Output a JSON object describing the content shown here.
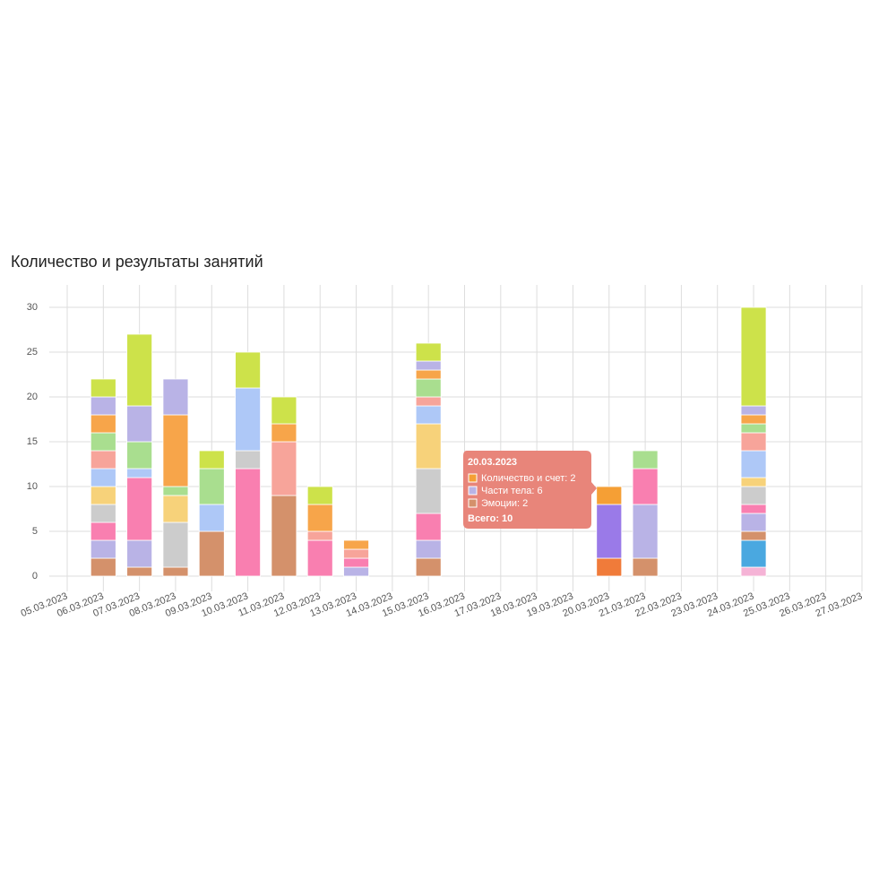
{
  "chart_data": {
    "type": "stacked-bar",
    "title": "Количество и результаты занятий",
    "categories": [
      "05.03.2023",
      "06.03.2023",
      "07.03.2023",
      "08.03.2023",
      "09.03.2023",
      "10.03.2023",
      "11.03.2023",
      "12.03.2023",
      "13.03.2023",
      "14.03.2023",
      "15.03.2023",
      "16.03.2023",
      "17.03.2023",
      "18.03.2023",
      "19.03.2023",
      "20.03.2023",
      "21.03.2023",
      "22.03.2023",
      "23.03.2023",
      "24.03.2023",
      "25.03.2023",
      "26.03.2023",
      "27.03.2023"
    ],
    "stacks": [
      [],
      [
        {
          "color": "#d4916b",
          "value": 2
        },
        {
          "color": "#b9b3e6",
          "value": 2
        },
        {
          "color": "#f97fb0",
          "value": 2
        },
        {
          "color": "#cccccc",
          "value": 2
        },
        {
          "color": "#f7d27a",
          "value": 2
        },
        {
          "color": "#aec8f7",
          "value": 2
        },
        {
          "color": "#f7a49a",
          "value": 2
        },
        {
          "color": "#a9de8f",
          "value": 2
        },
        {
          "color": "#f7a54a",
          "value": 2
        },
        {
          "color": "#b9b3e6",
          "value": 2
        },
        {
          "color": "#cde24a",
          "value": 2
        }
      ],
      [
        {
          "color": "#d4916b",
          "value": 1
        },
        {
          "color": "#b9b3e6",
          "value": 3
        },
        {
          "color": "#f97fb0",
          "value": 7
        },
        {
          "color": "#aec8f7",
          "value": 1
        },
        {
          "color": "#a9de8f",
          "value": 3
        },
        {
          "color": "#b9b3e6",
          "value": 4
        },
        {
          "color": "#cde24a",
          "value": 8
        }
      ],
      [
        {
          "color": "#d4916b",
          "value": 1
        },
        {
          "color": "#cccccc",
          "value": 5
        },
        {
          "color": "#f7d27a",
          "value": 3
        },
        {
          "color": "#a9de8f",
          "value": 1
        },
        {
          "color": "#f7a54a",
          "value": 8
        },
        {
          "color": "#b9b3e6",
          "value": 4
        }
      ],
      [
        {
          "color": "#d4916b",
          "value": 5
        },
        {
          "color": "#aec8f7",
          "value": 3
        },
        {
          "color": "#a9de8f",
          "value": 4
        },
        {
          "color": "#cde24a",
          "value": 2
        }
      ],
      [
        {
          "color": "#f97fb0",
          "value": 12
        },
        {
          "color": "#cccccc",
          "value": 2
        },
        {
          "color": "#aec8f7",
          "value": 7
        },
        {
          "color": "#cde24a",
          "value": 4
        }
      ],
      [
        {
          "color": "#d4916b",
          "value": 9
        },
        {
          "color": "#f7a49a",
          "value": 6
        },
        {
          "color": "#f7a54a",
          "value": 2
        },
        {
          "color": "#cde24a",
          "value": 3
        }
      ],
      [
        {
          "color": "#f97fb0",
          "value": 4
        },
        {
          "color": "#f7a49a",
          "value": 1
        },
        {
          "color": "#f7a54a",
          "value": 3
        },
        {
          "color": "#cde24a",
          "value": 2
        }
      ],
      [
        {
          "color": "#b9b3e6",
          "value": 1
        },
        {
          "color": "#f97fb0",
          "value": 1
        },
        {
          "color": "#f7a49a",
          "value": 1
        },
        {
          "color": "#f7a54a",
          "value": 1
        }
      ],
      [],
      [
        {
          "color": "#d4916b",
          "value": 2
        },
        {
          "color": "#b9b3e6",
          "value": 2
        },
        {
          "color": "#f97fb0",
          "value": 3
        },
        {
          "color": "#cccccc",
          "value": 5
        },
        {
          "color": "#f7d27a",
          "value": 5
        },
        {
          "color": "#aec8f7",
          "value": 2
        },
        {
          "color": "#f7a49a",
          "value": 1
        },
        {
          "color": "#a9de8f",
          "value": 2
        },
        {
          "color": "#f7a54a",
          "value": 1
        },
        {
          "color": "#b9b3e6",
          "value": 1
        },
        {
          "color": "#cde24a",
          "value": 2
        }
      ],
      [],
      [],
      [],
      [],
      [
        {
          "color": "#f07b3a",
          "value": 2
        },
        {
          "color": "#9a7ae8",
          "value": 6
        },
        {
          "color": "#f59f35",
          "value": 2
        }
      ],
      [
        {
          "color": "#d4916b",
          "value": 2
        },
        {
          "color": "#b9b3e6",
          "value": 6
        },
        {
          "color": "#f97fb0",
          "value": 4
        },
        {
          "color": "#a9de8f",
          "value": 2
        }
      ],
      [],
      [],
      [
        {
          "color": "#f5b3d6",
          "value": 1
        },
        {
          "color": "#4aa8e0",
          "value": 3
        },
        {
          "color": "#d4916b",
          "value": 1
        },
        {
          "color": "#b9b3e6",
          "value": 2
        },
        {
          "color": "#f97fb0",
          "value": 1
        },
        {
          "color": "#cccccc",
          "value": 2
        },
        {
          "color": "#f7d27a",
          "value": 1
        },
        {
          "color": "#aec8f7",
          "value": 3
        },
        {
          "color": "#f7a49a",
          "value": 2
        },
        {
          "color": "#a9de8f",
          "value": 1
        },
        {
          "color": "#f7a54a",
          "value": 1
        },
        {
          "color": "#b9b3e6",
          "value": 1
        },
        {
          "color": "#cde24a",
          "value": 11
        }
      ],
      [],
      [],
      []
    ],
    "ylim": [
      0,
      30
    ],
    "yticks": [
      0,
      5,
      10,
      15,
      20,
      25,
      30
    ],
    "grid": true,
    "tooltip": {
      "title": "20.03.2023",
      "color": "#e8857a",
      "items": [
        {
          "label": "Количество и счет: 2",
          "color": "#f59f35"
        },
        {
          "label": "Части тела: 6",
          "color": "#b9b3e6"
        },
        {
          "label": "Эмоции: 2",
          "color": "#d4916b"
        }
      ],
      "total": "Всего: 10"
    }
  }
}
